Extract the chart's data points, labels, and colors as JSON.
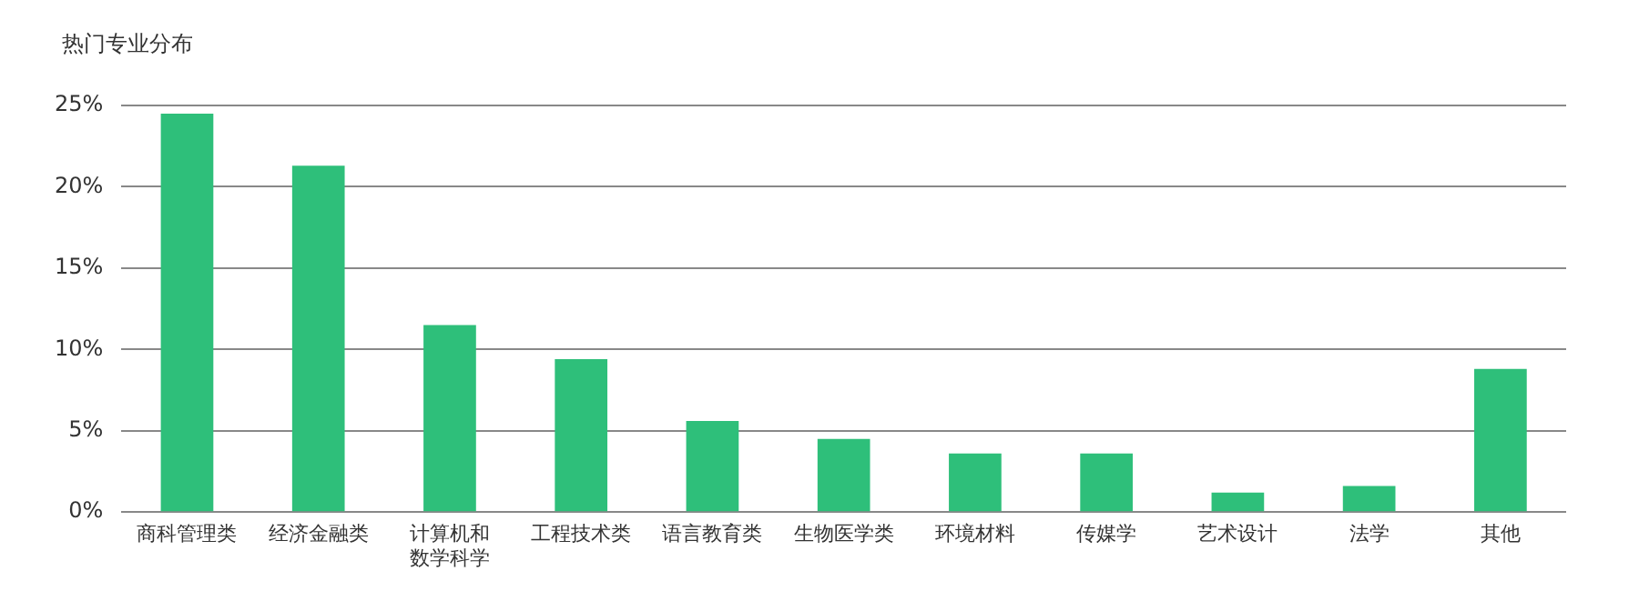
{
  "chart_data": {
    "type": "bar",
    "title": "热门专业分布",
    "categories": [
      "商科管理类",
      "经济金融类",
      "计算机和数学科学",
      "工程技术类",
      "语言教育类",
      "生物医学类",
      "环境材料",
      "传媒学",
      "艺术设计",
      "法学",
      "其他"
    ],
    "values": [
      24.5,
      21.3,
      11.5,
      9.4,
      5.6,
      4.5,
      3.6,
      3.6,
      1.2,
      1.6,
      8.8
    ],
    "color": "#2ebf7a",
    "ylim": [
      0,
      25
    ],
    "yticks": [
      {
        "value": 0,
        "label": "0%"
      },
      {
        "value": 5,
        "label": "5%"
      },
      {
        "value": 10,
        "label": "10%"
      },
      {
        "value": 15,
        "label": "15%"
      },
      {
        "value": 20,
        "label": "20%"
      },
      {
        "value": 25,
        "label": "25%"
      }
    ],
    "grid": "y",
    "legend": false
  }
}
